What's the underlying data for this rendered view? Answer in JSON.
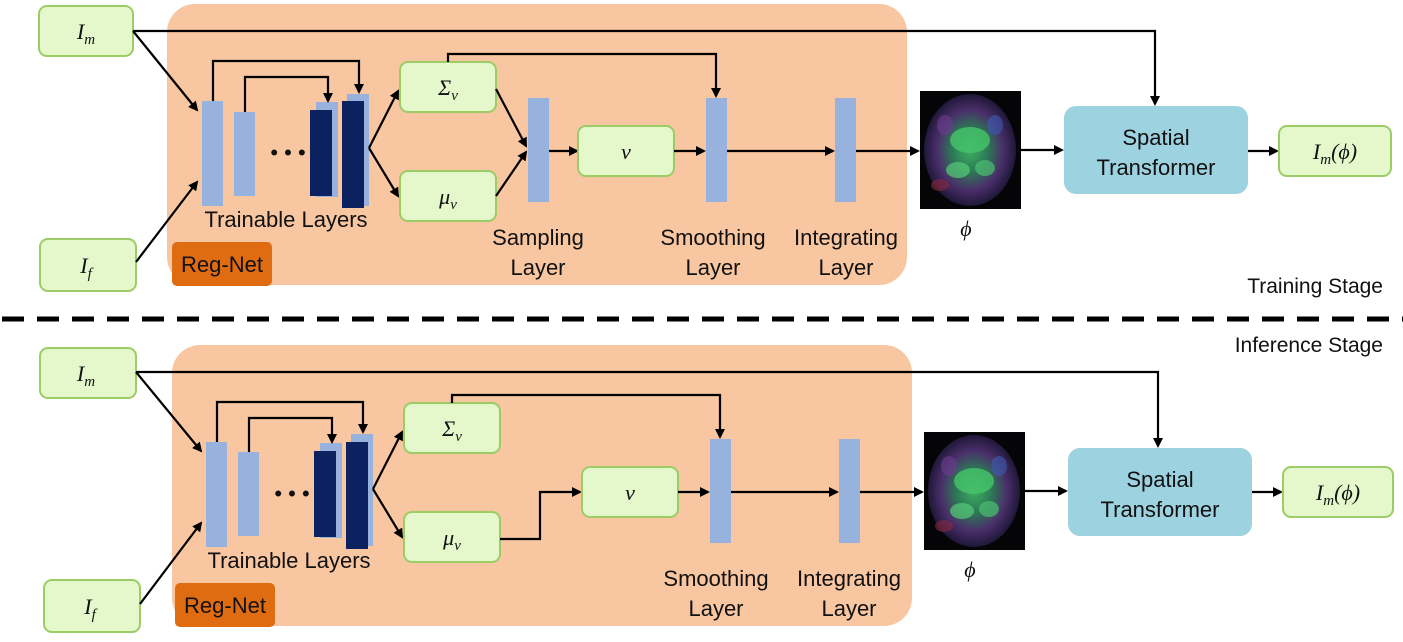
{
  "stages": {
    "training": "Training Stage",
    "inference": "Inference Stage"
  },
  "labels": {
    "trainable_layers": "Trainable Layers",
    "reg_net": "Reg-Net",
    "sampling_layer": [
      "Sampling",
      "Layer"
    ],
    "smoothing_layer": [
      "Smoothing",
      "Layer"
    ],
    "integrating_layer": [
      "Integrating",
      "Layer"
    ],
    "spatial_transformer": [
      "Spatial",
      "Transformer"
    ],
    "ellipsis": "• • •"
  },
  "math": {
    "moving_image": {
      "base": "I",
      "sub": "m"
    },
    "fixed_image": {
      "base": "I",
      "sub": "f"
    },
    "sigma_v": {
      "base": "Σ",
      "sub": "v"
    },
    "mu_v": {
      "base": "μ",
      "sub": "v"
    },
    "velocity": "v",
    "phi": "ϕ",
    "warped_output": {
      "base": "I",
      "sub": "m",
      "tail": "(ϕ)"
    }
  },
  "colors": {
    "panel": "#f8c6a0",
    "node_fill": "#e4f8cc",
    "node_border": "#9ccc65",
    "layer": "#97b2dc",
    "dark_layer": "#0c2260",
    "reg_net": "#e06c12",
    "spatial_transformer": "#9dd2e0"
  }
}
